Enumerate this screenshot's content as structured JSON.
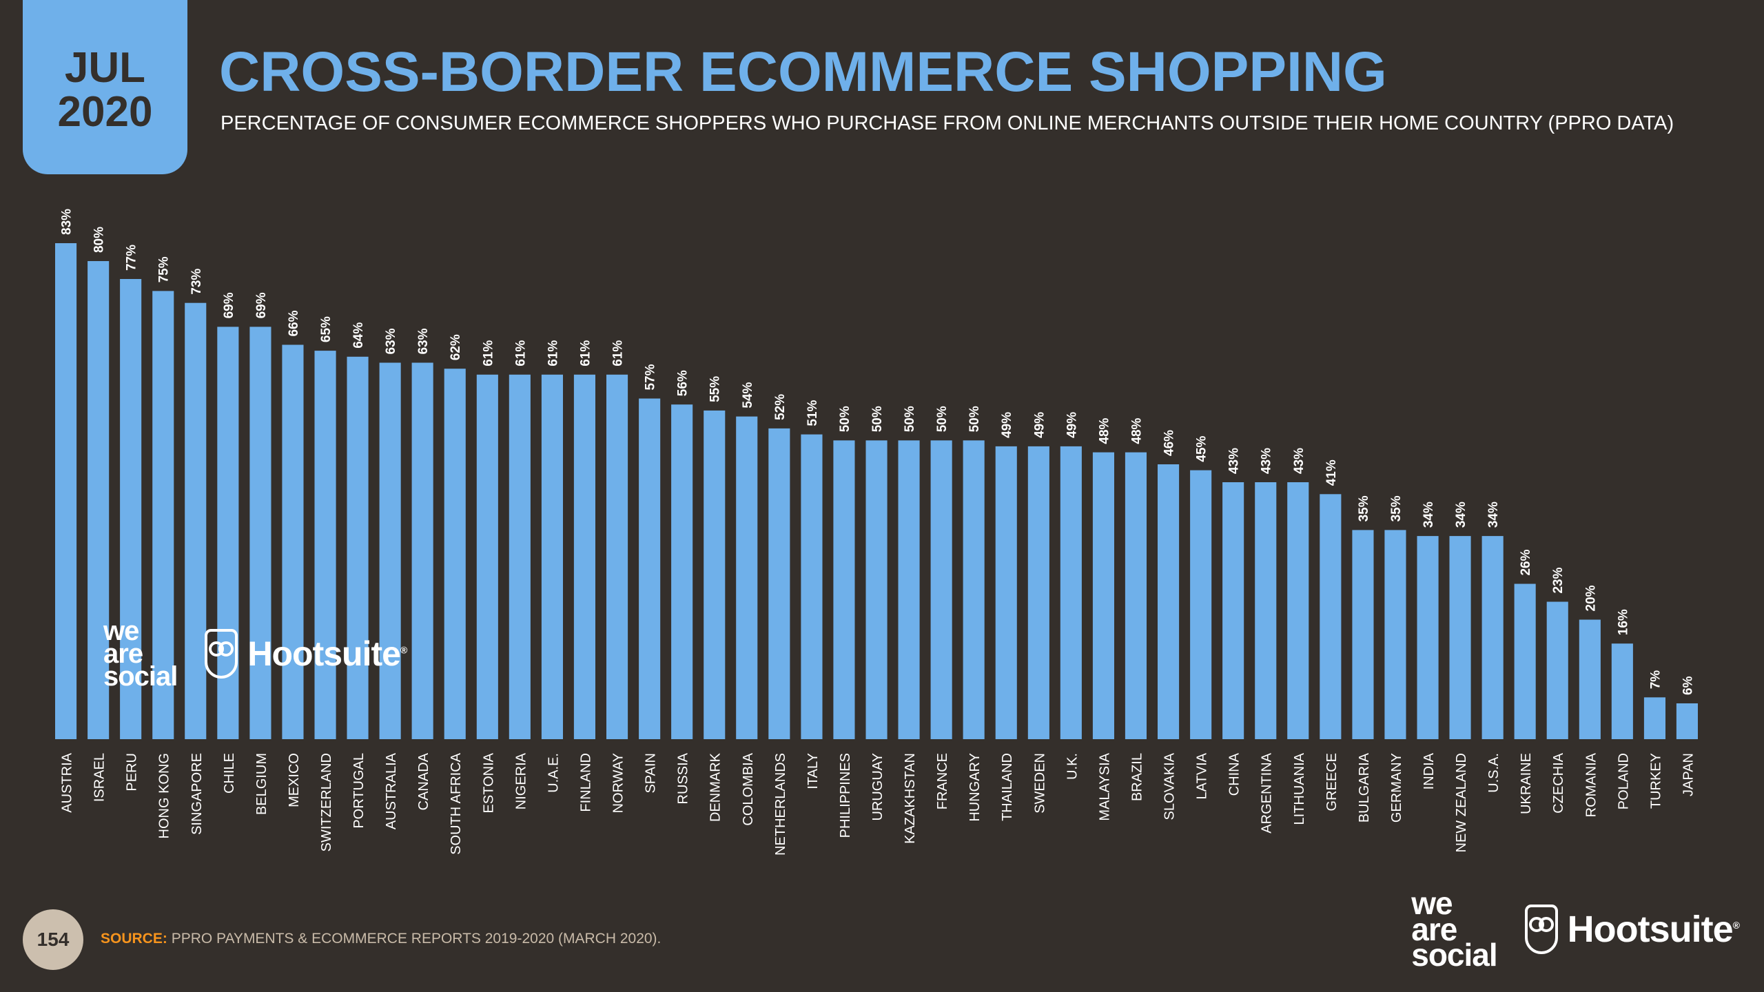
{
  "date_badge": {
    "month": "JUL",
    "year": "2020"
  },
  "header": {
    "title": "CROSS-BORDER ECOMMERCE SHOPPING",
    "subtitle": "PERCENTAGE OF CONSUMER ECOMMERCE SHOPPERS WHO PURCHASE FROM ONLINE MERCHANTS OUTSIDE THEIR HOME COUNTRY (PPRO DATA)"
  },
  "chart_data": {
    "type": "bar",
    "title": "CROSS-BORDER ECOMMERCE SHOPPING",
    "subtitle": "PERCENTAGE OF CONSUMER ECOMMERCE SHOPPERS WHO PURCHASE FROM ONLINE MERCHANTS OUTSIDE THEIR HOME COUNTRY (PPRO DATA)",
    "categories": [
      "AUSTRIA",
      "ISRAEL",
      "PERU",
      "HONG KONG",
      "SINGAPORE",
      "CHILE",
      "BELGIUM",
      "MEXICO",
      "SWITZERLAND",
      "PORTUGAL",
      "AUSTRALIA",
      "CANADA",
      "SOUTH AFRICA",
      "ESTONIA",
      "NIGERIA",
      "U.A.E.",
      "FINLAND",
      "NORWAY",
      "SPAIN",
      "RUSSIA",
      "DENMARK",
      "COLOMBIA",
      "NETHERLANDS",
      "ITALY",
      "PHILIPPINES",
      "URUGUAY",
      "KAZAKHSTAN",
      "FRANCE",
      "HUNGARY",
      "THAILAND",
      "SWEDEN",
      "U.K.",
      "MALAYSIA",
      "BRAZIL",
      "SLOVAKIA",
      "LATVIA",
      "CHINA",
      "ARGENTINA",
      "LITHUANIA",
      "GREECE",
      "BULGARIA",
      "GERMANY",
      "INDIA",
      "NEW ZEALAND",
      "U.S.A.",
      "UKRAINE",
      "CZECHIA",
      "ROMANIA",
      "POLAND",
      "TURKEY",
      "JAPAN"
    ],
    "values": [
      83,
      80,
      77,
      75,
      73,
      69,
      69,
      66,
      65,
      64,
      63,
      63,
      62,
      61,
      61,
      61,
      61,
      61,
      57,
      56,
      55,
      54,
      52,
      51,
      50,
      50,
      50,
      50,
      50,
      49,
      49,
      49,
      48,
      48,
      46,
      45,
      43,
      43,
      43,
      41,
      35,
      35,
      34,
      34,
      34,
      26,
      23,
      20,
      16,
      7,
      6
    ],
    "value_format": "{v}%",
    "ylim": [
      0,
      100
    ],
    "xlabel": "",
    "ylabel": "",
    "grid": false,
    "legend": "none",
    "bar_color": "#6fb0ea",
    "label_color": "#ffffff"
  },
  "watermark": {
    "brand1": [
      "we",
      "are",
      "social"
    ],
    "brand2": "Hootsuite",
    "reg": "®"
  },
  "footer": {
    "page_number": "154",
    "source_label": "SOURCE:",
    "source_text": "PPRO PAYMENTS & ECOMMERCE REPORTS 2019-2020 (MARCH 2020)."
  },
  "colors": {
    "background": "#342f2b",
    "accent": "#6fb0ea",
    "source_label": "#f7941d"
  }
}
